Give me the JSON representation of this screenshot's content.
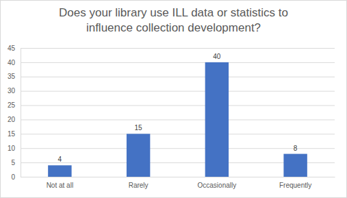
{
  "chart_data": {
    "type": "bar",
    "title": "Does your library use ILL data or statistics to influence collection development?",
    "categories": [
      "Not at all",
      "Rarely",
      "Occasionally",
      "Frequently"
    ],
    "values": [
      4,
      15,
      40,
      8
    ],
    "color": "#4472c4",
    "ylim": [
      0,
      45
    ],
    "yticks": [
      0,
      5,
      10,
      15,
      20,
      25,
      30,
      35,
      40,
      45
    ],
    "grid": true,
    "data_labels": true
  }
}
